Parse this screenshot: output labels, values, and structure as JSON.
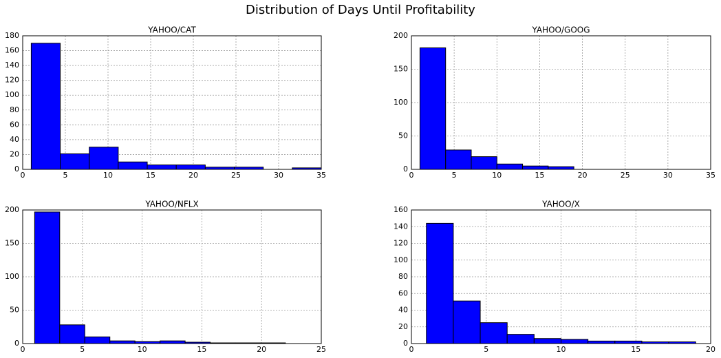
{
  "title": "Distribution of Days Until Profitability",
  "chart_data": [
    {
      "type": "histogram",
      "title": "YAHOO/CAT",
      "color": "#0000ff",
      "grid": true,
      "bins": [
        1,
        4.4,
        7.8,
        11.2,
        14.6,
        18,
        21.4,
        24.8,
        28.2,
        31.6,
        35
      ],
      "values": [
        170,
        21,
        30,
        10,
        6,
        6,
        3,
        3,
        0,
        2
      ],
      "xlim": [
        0,
        35
      ],
      "xticks": [
        0,
        5,
        10,
        15,
        20,
        25,
        30,
        35
      ],
      "ylim": [
        0,
        180
      ],
      "yticks": [
        0,
        20,
        40,
        60,
        80,
        100,
        120,
        140,
        160,
        180
      ]
    },
    {
      "type": "histogram",
      "title": "YAHOO/GOOG",
      "color": "#0000ff",
      "grid": true,
      "bins": [
        1,
        4,
        7,
        10,
        13,
        16,
        19
      ],
      "values": [
        182,
        29,
        19,
        8,
        5,
        4
      ],
      "xlim": [
        0,
        35
      ],
      "xticks": [
        0,
        5,
        10,
        15,
        20,
        25,
        30,
        35
      ],
      "ylim": [
        0,
        200
      ],
      "yticks": [
        0,
        50,
        100,
        150,
        200
      ]
    },
    {
      "type": "histogram",
      "title": "YAHOO/NFLX",
      "color": "#0000ff",
      "grid": true,
      "bins": [
        1,
        3.1,
        5.2,
        7.3,
        9.4,
        11.5,
        13.6,
        15.7,
        17.8,
        19.9,
        22
      ],
      "values": [
        197,
        28,
        10,
        4,
        3,
        4,
        2,
        1,
        1,
        1
      ],
      "xlim": [
        0,
        25
      ],
      "xticks": [
        0,
        5,
        10,
        15,
        20,
        25
      ],
      "ylim": [
        0,
        200
      ],
      "yticks": [
        0,
        50,
        100,
        150,
        200
      ]
    },
    {
      "type": "histogram",
      "title": "YAHOO/X",
      "color": "#0000ff",
      "grid": true,
      "bins": [
        1,
        2.8,
        4.6,
        6.4,
        8.2,
        10,
        11.8,
        13.6,
        15.4,
        17.2,
        19
      ],
      "values": [
        144,
        51,
        25,
        11,
        6,
        5,
        3,
        3,
        2,
        2
      ],
      "xlim": [
        0,
        20
      ],
      "xticks": [
        0,
        5,
        10,
        15,
        20
      ],
      "ylim": [
        0,
        160
      ],
      "yticks": [
        0,
        20,
        40,
        60,
        80,
        100,
        120,
        140,
        160
      ]
    }
  ]
}
